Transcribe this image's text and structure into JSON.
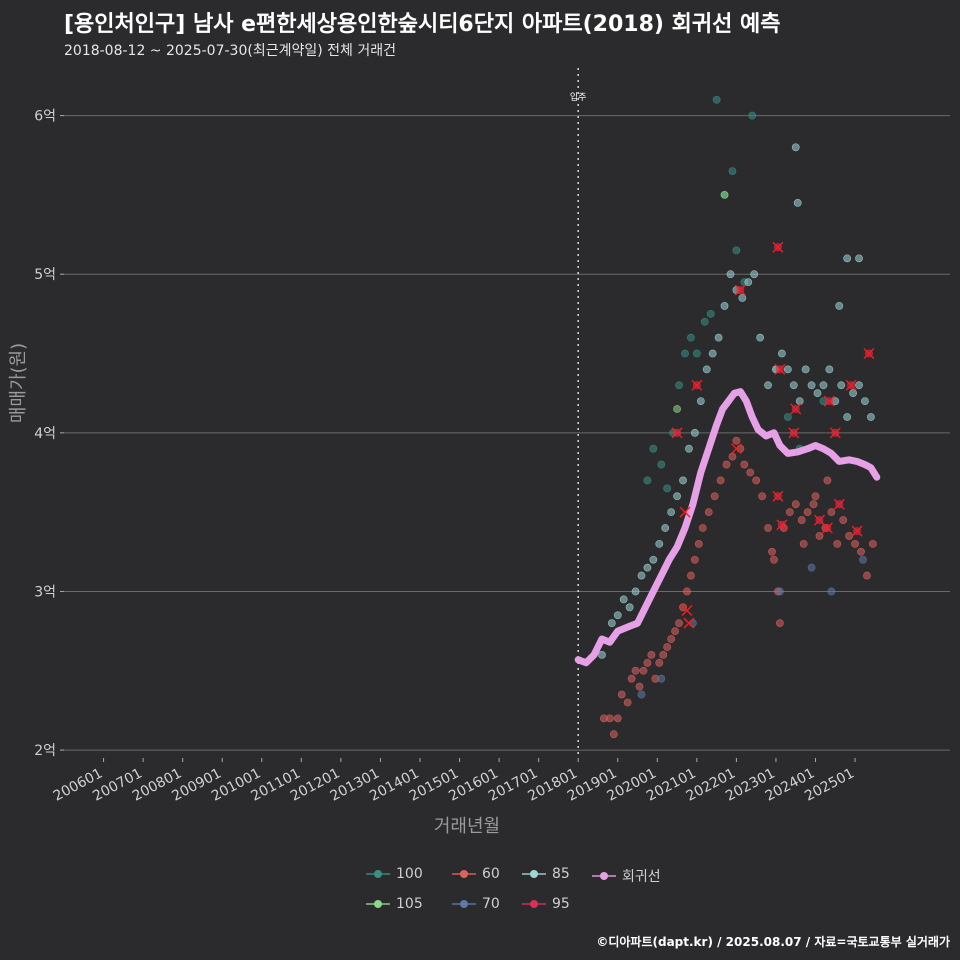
{
  "title": "[용인처인구] 남사 e편한세상용인한숲시티6단지 아파트(2018) 회귀선 예측",
  "subtitle": "2018-08-12 ~ 2025-07-30(최근계약일) 전체 거래건",
  "caption": "©디아파트(dapt.kr) / 2025.08.07 / 자료=국토교통부 실거래가",
  "colors": {
    "background": "#2b2b2d",
    "grid": "#6a6a6a",
    "s100": "#3a8f84",
    "s105": "#8ed68a",
    "s60": "#e0605c",
    "s70": "#5e78a8",
    "s85": "#9fd6d6",
    "s95": "#d8305a",
    "regression": "#e6a0e6",
    "marker": "#ff1a1a"
  },
  "chart_data": {
    "type": "scatter",
    "xlabel": "거래년월",
    "ylabel": "매매가(원)",
    "x_ticks": [
      "200601",
      "200701",
      "200801",
      "200901",
      "201001",
      "201101",
      "201201",
      "201301",
      "201401",
      "201501",
      "201601",
      "201701",
      "201801",
      "201901",
      "202001",
      "202101",
      "202201",
      "202301",
      "202401",
      "202501"
    ],
    "y_ticks": [
      2,
      3,
      4,
      5,
      6
    ],
    "y_tick_labels": [
      "2억",
      "3억",
      "4억",
      "5억",
      "6억"
    ],
    "y_unit": "억",
    "ylim": [
      1.95,
      6.3
    ],
    "xlim": [
      2005.0,
      2027.4
    ],
    "grid": "horizontal",
    "legend_position": "bottom",
    "annotation": {
      "x": 2018.0,
      "label": "입주"
    },
    "series": [
      {
        "name": "100",
        "color_key": "s100",
        "points": [
          [
            2019.75,
            3.7
          ],
          [
            2019.9,
            3.9
          ],
          [
            2020.1,
            3.8
          ],
          [
            2020.25,
            3.65
          ],
          [
            2020.4,
            4.0
          ],
          [
            2020.55,
            4.3
          ],
          [
            2020.7,
            4.5
          ],
          [
            2020.85,
            4.6
          ],
          [
            2021.0,
            4.5
          ],
          [
            2021.2,
            4.7
          ],
          [
            2021.35,
            4.75
          ],
          [
            2021.5,
            6.1
          ],
          [
            2021.7,
            5.5
          ],
          [
            2021.9,
            5.65
          ],
          [
            2022.0,
            5.15
          ],
          [
            2022.2,
            4.95
          ],
          [
            2022.4,
            6.0
          ],
          [
            2023.0,
            4.4
          ],
          [
            2023.3,
            4.1
          ],
          [
            2023.6,
            3.9
          ],
          [
            2024.2,
            4.2
          ]
        ]
      },
      {
        "name": "105",
        "color_key": "s105",
        "points": [
          [
            2021.7,
            5.5
          ],
          [
            2020.5,
            4.15
          ]
        ]
      },
      {
        "name": "60",
        "color_key": "s60",
        "points": [
          [
            2018.65,
            2.2
          ],
          [
            2018.8,
            2.2
          ],
          [
            2018.9,
            2.1
          ],
          [
            2019.0,
            2.2
          ],
          [
            2019.1,
            2.35
          ],
          [
            2019.25,
            2.3
          ],
          [
            2019.35,
            2.45
          ],
          [
            2019.45,
            2.5
          ],
          [
            2019.55,
            2.4
          ],
          [
            2019.65,
            2.5
          ],
          [
            2019.75,
            2.55
          ],
          [
            2019.85,
            2.6
          ],
          [
            2019.95,
            2.45
          ],
          [
            2020.05,
            2.55
          ],
          [
            2020.15,
            2.6
          ],
          [
            2020.25,
            2.65
          ],
          [
            2020.35,
            2.7
          ],
          [
            2020.45,
            2.75
          ],
          [
            2020.55,
            2.8
          ],
          [
            2020.65,
            2.9
          ],
          [
            2020.75,
            3.0
          ],
          [
            2020.85,
            3.1
          ],
          [
            2020.95,
            3.2
          ],
          [
            2021.05,
            3.3
          ],
          [
            2021.15,
            3.4
          ],
          [
            2021.3,
            3.5
          ],
          [
            2021.45,
            3.6
          ],
          [
            2021.6,
            3.7
          ],
          [
            2021.75,
            3.8
          ],
          [
            2021.9,
            3.85
          ],
          [
            2022.0,
            3.95
          ],
          [
            2022.1,
            3.9
          ],
          [
            2022.2,
            3.8
          ],
          [
            2022.35,
            3.75
          ],
          [
            2022.5,
            3.7
          ],
          [
            2022.65,
            3.6
          ],
          [
            2022.8,
            3.4
          ],
          [
            2022.95,
            3.2
          ],
          [
            2023.05,
            3.0
          ],
          [
            2023.1,
            2.8
          ],
          [
            2023.2,
            3.4
          ],
          [
            2023.35,
            3.5
          ],
          [
            2023.5,
            3.55
          ],
          [
            2023.65,
            3.45
          ],
          [
            2023.8,
            3.5
          ],
          [
            2023.95,
            3.55
          ],
          [
            2024.1,
            3.35
          ],
          [
            2024.25,
            3.4
          ],
          [
            2024.4,
            3.5
          ],
          [
            2024.55,
            3.3
          ],
          [
            2024.7,
            3.45
          ],
          [
            2024.85,
            3.35
          ],
          [
            2025.0,
            3.3
          ],
          [
            2025.15,
            3.25
          ],
          [
            2025.3,
            3.1
          ],
          [
            2025.45,
            3.3
          ],
          [
            2024.0,
            3.6
          ],
          [
            2024.3,
            3.7
          ],
          [
            2023.7,
            3.3
          ],
          [
            2022.9,
            3.25
          ]
        ]
      },
      {
        "name": "70",
        "color_key": "s70",
        "points": [
          [
            2019.6,
            2.35
          ],
          [
            2020.1,
            2.45
          ],
          [
            2020.9,
            2.8
          ],
          [
            2023.1,
            3.0
          ],
          [
            2023.9,
            3.15
          ],
          [
            2024.4,
            3.0
          ],
          [
            2025.2,
            3.2
          ]
        ]
      },
      {
        "name": "85",
        "color_key": "s85",
        "points": [
          [
            2018.6,
            2.6
          ],
          [
            2018.85,
            2.8
          ],
          [
            2019.0,
            2.85
          ],
          [
            2019.15,
            2.95
          ],
          [
            2019.3,
            2.9
          ],
          [
            2019.45,
            3.0
          ],
          [
            2019.6,
            3.1
          ],
          [
            2019.75,
            3.15
          ],
          [
            2019.9,
            3.2
          ],
          [
            2020.05,
            3.3
          ],
          [
            2020.2,
            3.4
          ],
          [
            2020.35,
            3.5
          ],
          [
            2020.5,
            3.6
          ],
          [
            2020.65,
            3.7
          ],
          [
            2020.8,
            3.9
          ],
          [
            2020.95,
            4.0
          ],
          [
            2021.1,
            4.2
          ],
          [
            2021.25,
            4.4
          ],
          [
            2021.4,
            4.5
          ],
          [
            2021.55,
            4.6
          ],
          [
            2021.7,
            4.8
          ],
          [
            2021.85,
            5.0
          ],
          [
            2022.0,
            4.9
          ],
          [
            2022.15,
            4.85
          ],
          [
            2022.3,
            4.95
          ],
          [
            2022.45,
            5.0
          ],
          [
            2022.6,
            4.6
          ],
          [
            2022.8,
            4.3
          ],
          [
            2023.0,
            4.4
          ],
          [
            2023.15,
            4.5
          ],
          [
            2023.3,
            4.4
          ],
          [
            2023.45,
            4.3
          ],
          [
            2023.6,
            4.2
          ],
          [
            2023.75,
            4.4
          ],
          [
            2023.9,
            4.3
          ],
          [
            2024.05,
            4.25
          ],
          [
            2024.2,
            4.3
          ],
          [
            2024.35,
            4.4
          ],
          [
            2024.5,
            4.2
          ],
          [
            2024.65,
            4.3
          ],
          [
            2024.8,
            4.1
          ],
          [
            2024.95,
            4.25
          ],
          [
            2025.1,
            4.3
          ],
          [
            2025.25,
            4.2
          ],
          [
            2025.4,
            4.1
          ],
          [
            2023.5,
            5.8
          ],
          [
            2023.55,
            5.45
          ],
          [
            2024.6,
            4.8
          ],
          [
            2024.8,
            5.1
          ],
          [
            2025.1,
            5.1
          ]
        ]
      },
      {
        "name": "95",
        "color_key": "s95",
        "points": [
          [
            2020.5,
            4.0
          ],
          [
            2021.0,
            4.3
          ],
          [
            2022.1,
            4.9
          ],
          [
            2023.05,
            5.17
          ],
          [
            2023.1,
            4.4
          ],
          [
            2023.5,
            4.15
          ],
          [
            2023.45,
            4.0
          ],
          [
            2024.35,
            4.2
          ],
          [
            2024.5,
            4.0
          ],
          [
            2024.9,
            4.3
          ],
          [
            2025.35,
            4.5
          ],
          [
            2023.05,
            3.6
          ],
          [
            2023.15,
            3.42
          ],
          [
            2024.1,
            3.45
          ],
          [
            2024.6,
            3.55
          ],
          [
            2025.05,
            3.38
          ],
          [
            2024.3,
            3.4
          ]
        ]
      },
      {
        "name": "회귀선",
        "color_key": "regression",
        "type": "line",
        "points": [
          [
            2018.0,
            2.57
          ],
          [
            2018.2,
            2.55
          ],
          [
            2018.4,
            2.6
          ],
          [
            2018.6,
            2.7
          ],
          [
            2018.8,
            2.68
          ],
          [
            2019.0,
            2.75
          ],
          [
            2019.3,
            2.78
          ],
          [
            2019.5,
            2.8
          ],
          [
            2019.7,
            2.9
          ],
          [
            2019.9,
            3.0
          ],
          [
            2020.1,
            3.1
          ],
          [
            2020.3,
            3.2
          ],
          [
            2020.5,
            3.28
          ],
          [
            2020.7,
            3.4
          ],
          [
            2020.9,
            3.55
          ],
          [
            2021.1,
            3.75
          ],
          [
            2021.3,
            3.9
          ],
          [
            2021.5,
            4.05
          ],
          [
            2021.65,
            4.15
          ],
          [
            2021.8,
            4.2
          ],
          [
            2021.95,
            4.25
          ],
          [
            2022.1,
            4.26
          ],
          [
            2022.25,
            4.2
          ],
          [
            2022.4,
            4.1
          ],
          [
            2022.55,
            4.02
          ],
          [
            2022.75,
            3.98
          ],
          [
            2022.95,
            4.0
          ],
          [
            2023.1,
            3.92
          ],
          [
            2023.3,
            3.87
          ],
          [
            2023.55,
            3.88
          ],
          [
            2023.8,
            3.9
          ],
          [
            2024.0,
            3.92
          ],
          [
            2024.2,
            3.9
          ],
          [
            2024.4,
            3.87
          ],
          [
            2024.6,
            3.82
          ],
          [
            2024.85,
            3.83
          ],
          [
            2025.05,
            3.82
          ],
          [
            2025.25,
            3.8
          ],
          [
            2025.4,
            3.78
          ],
          [
            2025.55,
            3.72
          ]
        ]
      }
    ],
    "highlighted_deals": [
      [
        2020.5,
        4.0
      ],
      [
        2021.0,
        4.3
      ],
      [
        2022.1,
        4.9
      ],
      [
        2023.05,
        5.17
      ],
      [
        2023.1,
        4.4
      ],
      [
        2023.5,
        4.15
      ],
      [
        2023.45,
        4.0
      ],
      [
        2024.35,
        4.2
      ],
      [
        2024.5,
        4.0
      ],
      [
        2024.9,
        4.3
      ],
      [
        2025.35,
        4.5
      ],
      [
        2023.05,
        3.6
      ],
      [
        2023.15,
        3.42
      ],
      [
        2024.1,
        3.45
      ],
      [
        2024.6,
        3.55
      ],
      [
        2025.05,
        3.38
      ],
      [
        2024.3,
        3.4
      ],
      [
        2020.7,
        3.5
      ],
      [
        2020.75,
        2.88
      ],
      [
        2020.8,
        2.8
      ],
      [
        2022.0,
        3.9
      ]
    ]
  },
  "legend": {
    "items": [
      {
        "label": "100",
        "color_key": "s100",
        "kind": "point"
      },
      {
        "label": "60",
        "color_key": "s60",
        "kind": "point"
      },
      {
        "label": "85",
        "color_key": "s85",
        "kind": "point"
      },
      {
        "label": "회귀선",
        "color_key": "regression",
        "kind": "line"
      },
      {
        "label": "105",
        "color_key": "s105",
        "kind": "point"
      },
      {
        "label": "70",
        "color_key": "s70",
        "kind": "point"
      },
      {
        "label": "95",
        "color_key": "s95",
        "kind": "point"
      }
    ]
  }
}
